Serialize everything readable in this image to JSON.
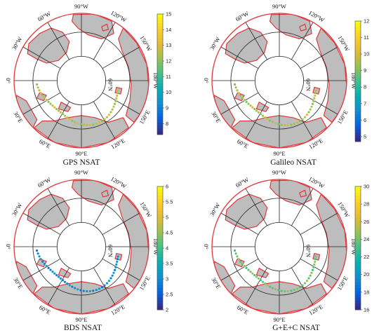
{
  "colors": {
    "land": "#bdbdbd",
    "coast": "#e0383c",
    "graticule": "#222222",
    "background": "#ffffff"
  },
  "colormap": "parula",
  "panels": [
    {
      "id": "gps",
      "title": "GPS NSAT",
      "lon_labels": [
        "90°W",
        "120°W",
        "150°W",
        "180°W",
        "150°E",
        "120°E",
        "90°E",
        "60°E",
        "30°E",
        "0°",
        "30°W",
        "60°W"
      ],
      "lat_label": "60°N",
      "colorbar": {
        "ticks": [
          "15",
          "14",
          "13",
          "12",
          "11",
          "10",
          "9",
          "8"
        ],
        "min": 7.3,
        "max": 15
      },
      "track_value": 12.5
    },
    {
      "id": "galileo",
      "title": "Galileo NSAT",
      "lon_labels": [
        "90°W",
        "120°W",
        "150°W",
        "180°W",
        "150°E",
        "120°E",
        "90°E",
        "60°E",
        "30°E",
        "0°",
        "30°W",
        "60°W"
      ],
      "lat_label": "60°N",
      "colorbar": {
        "ticks": [
          "12",
          "11",
          "10",
          "9",
          "8",
          "7",
          "6",
          "5"
        ],
        "min": 4.7,
        "max": 12
      },
      "track_value": 9.5
    },
    {
      "id": "bds",
      "title": "BDS NSAT",
      "lon_labels": [
        "90°W",
        "120°W",
        "150°W",
        "180°W",
        "150°E",
        "120°E",
        "90°E",
        "60°E",
        "30°E",
        "0°",
        "30°W",
        "60°W"
      ],
      "lat_label": "60°N",
      "colorbar": {
        "ticks": [
          "6",
          "5.5",
          "5",
          "4.5",
          "4",
          "3.5",
          "3",
          "2.5",
          "2"
        ],
        "min": 2,
        "max": 6
      },
      "track_value": 3.0
    },
    {
      "id": "gec",
      "title": "G+E+C NSAT",
      "lon_labels": [
        "90°W",
        "120°W",
        "150°W",
        "180°W",
        "150°E",
        "120°E",
        "90°E",
        "60°E",
        "30°E",
        "0°",
        "30°W",
        "60°W"
      ],
      "lat_label": "60°N",
      "colorbar": {
        "ticks": [
          "30",
          "28",
          "26",
          "24",
          "22",
          "20",
          "18",
          "16"
        ],
        "min": 16,
        "max": 30
      },
      "track_value": 24
    }
  ]
}
